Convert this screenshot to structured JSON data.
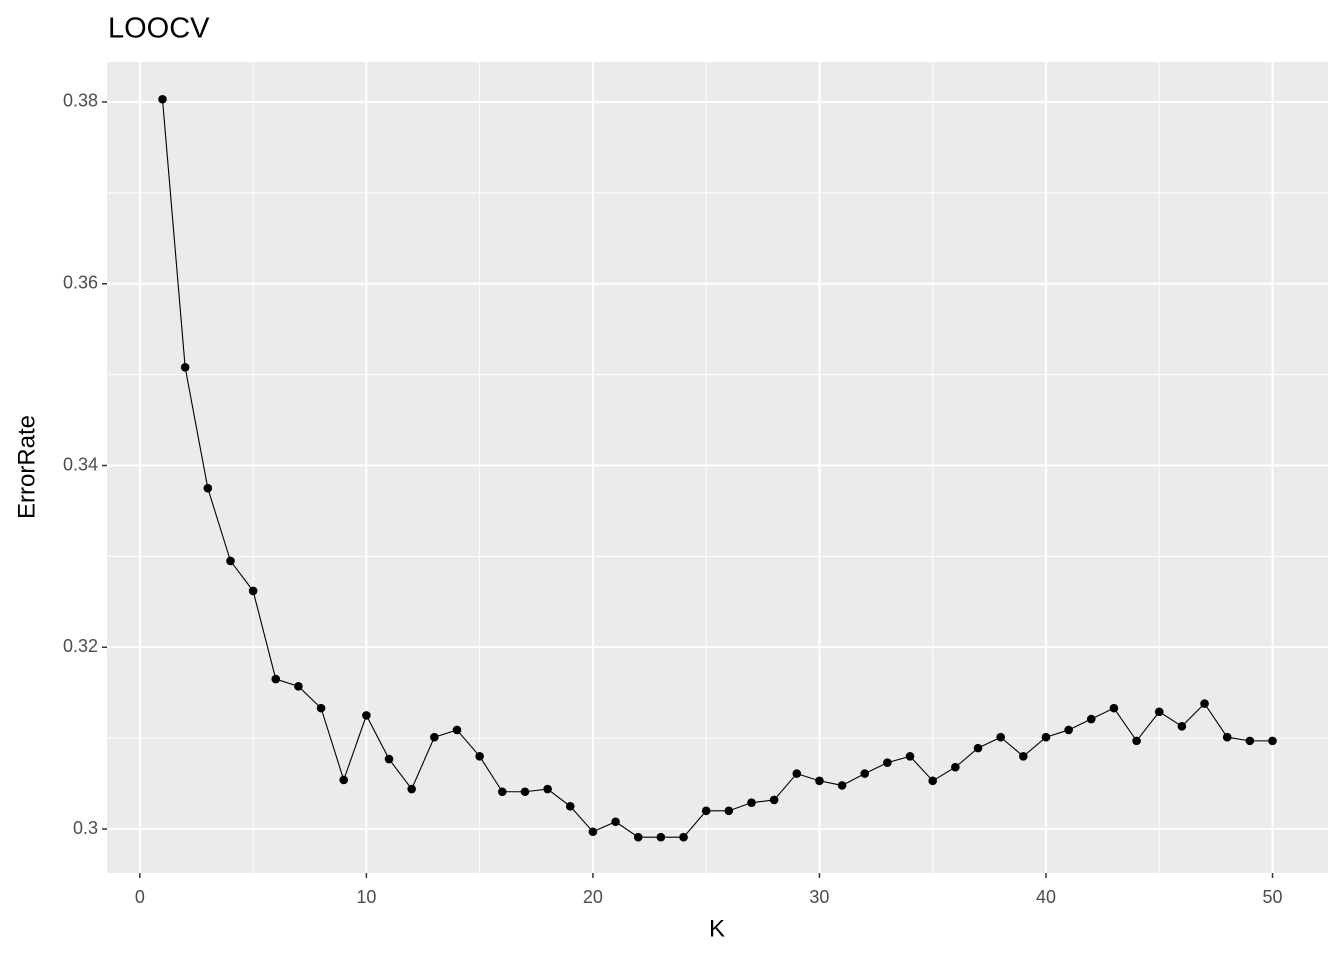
{
  "chart_data": {
    "type": "line",
    "title": "LOOCV",
    "x_label": "K",
    "y_label": "ErrorRate",
    "x": [
      1,
      2,
      3,
      4,
      5,
      6,
      7,
      8,
      9,
      10,
      11,
      12,
      13,
      14,
      15,
      16,
      17,
      18,
      19,
      20,
      21,
      22,
      23,
      24,
      25,
      26,
      27,
      28,
      29,
      30,
      31,
      32,
      33,
      34,
      35,
      36,
      37,
      38,
      39,
      40,
      41,
      42,
      43,
      44,
      45,
      46,
      47,
      48,
      49,
      50
    ],
    "series": [
      {
        "name": "ErrorRate",
        "color": "#000000",
        "values": [
          0.3803,
          0.3508,
          0.3375,
          0.3295,
          0.3262,
          0.3165,
          0.3157,
          0.3133,
          0.3054,
          0.3125,
          0.3077,
          0.3044,
          0.3101,
          0.3109,
          0.308,
          0.3041,
          0.3041,
          0.3044,
          0.3025,
          0.2997,
          0.3008,
          0.2991,
          0.2991,
          0.2991,
          0.302,
          0.302,
          0.3029,
          0.3032,
          0.3061,
          0.3053,
          0.3048,
          0.3061,
          0.3073,
          0.308,
          0.3053,
          0.3068,
          0.3089,
          0.3101,
          0.308,
          0.3101,
          0.3109,
          0.3121,
          0.3133,
          0.3097,
          0.3129,
          0.3113,
          0.3138,
          0.3101,
          0.3097,
          0.3097
        ]
      }
    ],
    "xlim": [
      -1.45,
      52.45
    ],
    "xticks": [
      0,
      10,
      20,
      30,
      40,
      50
    ],
    "ylim": [
      0.29516,
      0.3844
    ],
    "yticks": [
      0.3,
      0.32,
      0.34,
      0.36,
      0.38
    ],
    "grid": true
  }
}
